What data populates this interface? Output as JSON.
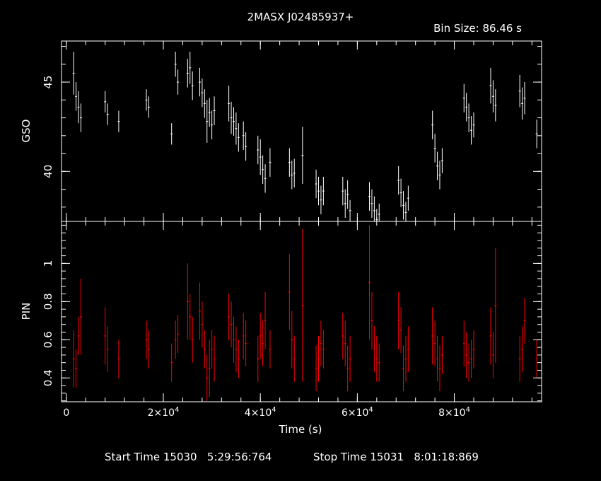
{
  "title": "2MASX J02485937+",
  "bin_size_label": "Bin Size:  86.46  s",
  "footer": {
    "start_label": "Start Time 15030   5:29:56:764",
    "stop_label": "Stop Time 15031   8:01:18:869"
  },
  "colors": {
    "background": "#000000",
    "axes": "#ffffff",
    "gso": "#ffffff",
    "pin": "#ff0000"
  },
  "chart_data": [
    {
      "type": "scatter",
      "panel": "top",
      "ylabel": "GSO",
      "xlim": [
        -1000,
        98000
      ],
      "ylim": [
        37.2,
        47.3
      ],
      "yticks": [
        40,
        45
      ],
      "ytick_labels": [
        "40",
        "45"
      ],
      "series": [
        {
          "x": [
            1500,
            2000,
            2500,
            3000,
            8000,
            8500,
            10800,
            16500,
            17000,
            21700,
            22500,
            23000,
            25000,
            25500,
            26000,
            27500,
            28000,
            28500,
            29000,
            29500,
            30000,
            30500,
            33500,
            34000,
            34500,
            35000,
            35500,
            36500,
            37000,
            39500,
            40000,
            40500,
            41000,
            42000,
            46000,
            46500,
            47000,
            48700,
            51500,
            52000,
            52500,
            53000,
            57000,
            57500,
            58000,
            58500,
            62500,
            63000,
            63500,
            64000,
            64500,
            68500,
            69000,
            69500,
            70000,
            70500,
            75500,
            76000,
            76500,
            77000,
            77500,
            82000,
            82500,
            83000,
            83500,
            84000,
            87500,
            88000,
            88500,
            93500,
            94000,
            94500,
            97000
          ],
          "y": [
            45.5,
            44.2,
            43.6,
            43.0,
            43.9,
            43.2,
            42.8,
            44.0,
            43.6,
            42.1,
            46.0,
            45.0,
            45.5,
            45.8,
            44.8,
            45.0,
            44.4,
            43.8,
            42.8,
            43.3,
            42.6,
            43.4,
            43.8,
            43.0,
            42.8,
            42.4,
            41.9,
            42.0,
            41.4,
            41.2,
            40.8,
            40.1,
            39.6,
            40.5,
            40.5,
            39.8,
            39.9,
            40.9,
            39.3,
            38.9,
            38.4,
            38.9,
            38.9,
            38.2,
            38.7,
            37.8,
            38.6,
            38.2,
            37.8,
            37.3,
            37.6,
            39.5,
            38.8,
            38.1,
            37.7,
            38.5,
            42.6,
            41.3,
            40.3,
            39.8,
            40.6,
            44.1,
            43.6,
            43.0,
            42.3,
            42.6,
            44.8,
            44.2,
            43.7,
            44.5,
            43.8,
            44.1,
            42.1
          ],
          "y_err": [
            1.2,
            0.8,
            0.9,
            0.8,
            0.6,
            0.6,
            0.6,
            0.6,
            0.6,
            0.6,
            0.7,
            0.7,
            0.8,
            0.9,
            0.8,
            0.8,
            0.8,
            0.8,
            1.2,
            0.8,
            0.8,
            0.8,
            1.0,
            0.9,
            0.8,
            0.9,
            0.8,
            0.8,
            0.8,
            0.8,
            1.0,
            0.8,
            0.8,
            0.8,
            0.8,
            0.8,
            0.8,
            1.6,
            0.8,
            0.8,
            0.8,
            0.8,
            0.8,
            0.8,
            0.8,
            0.6,
            0.8,
            0.8,
            0.8,
            0.6,
            0.6,
            0.8,
            0.8,
            0.8,
            0.6,
            0.7,
            0.8,
            0.8,
            0.8,
            0.8,
            0.7,
            0.8,
            0.8,
            0.8,
            0.8,
            0.7,
            1.0,
            0.9,
            0.9,
            0.9,
            0.9,
            0.9,
            0.8
          ]
        }
      ]
    },
    {
      "type": "scatter",
      "panel": "bottom",
      "xlabel": "Time (s)",
      "ylabel": "PIN",
      "xlim": [
        -1000,
        98000
      ],
      "ylim": [
        0.275,
        1.22
      ],
      "xticks": [
        0,
        20000,
        40000,
        60000,
        80000
      ],
      "xtick_labels": [
        [
          "0",
          ""
        ],
        [
          "2×10",
          "4"
        ],
        [
          "4×10",
          "4"
        ],
        [
          "6×10",
          "4"
        ],
        [
          "8×10",
          "4"
        ]
      ],
      "yticks": [
        0.4,
        0.6,
        0.8,
        1.0
      ],
      "ytick_labels": [
        "0.4",
        "0.6",
        "0.8",
        "1"
      ],
      "series": [
        {
          "x": [
            1500,
            2000,
            2500,
            3000,
            8000,
            8500,
            10800,
            16500,
            17000,
            21700,
            22500,
            23000,
            25000,
            25500,
            26000,
            27500,
            28000,
            28500,
            29000,
            29500,
            30000,
            30500,
            33500,
            34000,
            34500,
            35000,
            35500,
            36500,
            37000,
            39500,
            40000,
            40500,
            41000,
            42000,
            46000,
            46500,
            47000,
            48700,
            51500,
            52000,
            52500,
            53000,
            57000,
            57500,
            58000,
            58500,
            62500,
            63000,
            63500,
            64000,
            64500,
            68500,
            69000,
            69500,
            70000,
            70500,
            75500,
            76000,
            76500,
            77000,
            77500,
            82000,
            82500,
            83000,
            83500,
            84000,
            87500,
            88000,
            88500,
            93500,
            94000,
            94500,
            97000
          ],
          "y": [
            0.5,
            0.45,
            0.62,
            0.72,
            0.62,
            0.55,
            0.5,
            0.6,
            0.55,
            0.48,
            0.6,
            0.63,
            0.8,
            0.72,
            0.6,
            0.75,
            0.68,
            0.55,
            0.4,
            0.45,
            0.55,
            0.5,
            0.72,
            0.68,
            0.6,
            0.55,
            0.5,
            0.62,
            0.58,
            0.5,
            0.62,
            0.58,
            0.7,
            0.55,
            0.85,
            0.6,
            0.5,
            0.78,
            0.45,
            0.5,
            0.58,
            0.55,
            0.62,
            0.58,
            0.45,
            0.5,
            0.9,
            0.7,
            0.55,
            0.5,
            0.48,
            0.7,
            0.65,
            0.45,
            0.5,
            0.55,
            0.62,
            0.58,
            0.5,
            0.45,
            0.52,
            0.58,
            0.52,
            0.48,
            0.5,
            0.55,
            0.62,
            0.52,
            0.78,
            0.5,
            0.55,
            0.7,
            0.5
          ],
          "y_err": [
            0.15,
            0.1,
            0.1,
            0.2,
            0.15,
            0.12,
            0.1,
            0.1,
            0.1,
            0.1,
            0.1,
            0.1,
            0.2,
            0.12,
            0.12,
            0.15,
            0.12,
            0.1,
            0.12,
            0.15,
            0.1,
            0.12,
            0.12,
            0.12,
            0.12,
            0.12,
            0.1,
            0.12,
            0.12,
            0.12,
            0.12,
            0.12,
            0.15,
            0.1,
            0.2,
            0.15,
            0.12,
            0.4,
            0.12,
            0.12,
            0.12,
            0.1,
            0.12,
            0.12,
            0.12,
            0.12,
            0.3,
            0.15,
            0.12,
            0.12,
            0.1,
            0.15,
            0.12,
            0.12,
            0.12,
            0.12,
            0.15,
            0.12,
            0.12,
            0.12,
            0.1,
            0.12,
            0.12,
            0.1,
            0.1,
            0.1,
            0.15,
            0.12,
            0.3,
            0.12,
            0.12,
            0.12,
            0.1
          ]
        }
      ]
    }
  ]
}
